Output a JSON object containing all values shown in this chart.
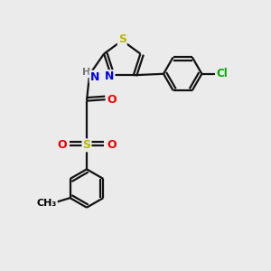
{
  "bg_color": "#ebebeb",
  "atom_colors": {
    "S": "#b8b800",
    "N": "#0000ee",
    "O": "#ee0000",
    "Cl": "#00aa00",
    "C": "#000000",
    "H": "#777777"
  },
  "bond_color": "#111111",
  "bond_width": 1.6,
  "dbl_sep": 0.12
}
